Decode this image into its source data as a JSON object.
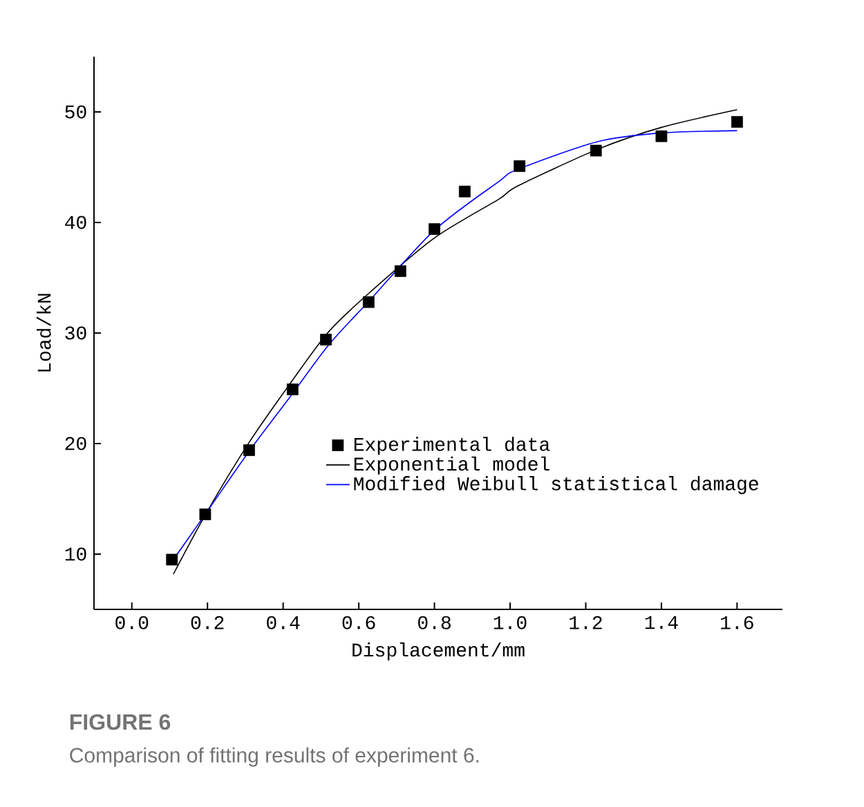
{
  "chart_data": {
    "type": "line",
    "title": "FIGURE 6",
    "subtitle": "Comparison of fitting results of experiment 6.",
    "xlabel": "Displacement/mm",
    "ylabel": "Load/kN",
    "xlim": [
      -0.1,
      1.72
    ],
    "ylim": [
      5,
      55
    ],
    "xticks": [
      {
        "value": 0,
        "label": "0.0"
      },
      0.2,
      0.4,
      0.6,
      0.8,
      {
        "value": 1,
        "label": "1.0"
      },
      1.2,
      1.4,
      1.6
    ],
    "yticks": [
      10,
      20,
      30,
      40,
      50
    ],
    "grid": false,
    "legend": "bottom right",
    "series": [
      {
        "name": "Experimental data",
        "type": "scatter",
        "marker": "square",
        "color": "#000000",
        "x": [
          0.106,
          0.194,
          0.31,
          0.425,
          0.513,
          0.626,
          0.71,
          0.8,
          0.88,
          1.025,
          1.227,
          1.4,
          1.6
        ],
        "values": [
          9.5,
          13.6,
          19.4,
          24.9,
          29.4,
          32.8,
          35.6,
          39.4,
          42.8,
          45.1,
          46.5,
          47.8,
          49.1
        ]
      },
      {
        "name": "Exponential model",
        "color": "#000000",
        "x": [
          0.11,
          0.2,
          0.31,
          0.42,
          0.52,
          0.63,
          0.8,
          0.97,
          1.02,
          1.23,
          1.4,
          1.6
        ],
        "values": [
          8.2,
          13.9,
          20.1,
          25.5,
          30.1,
          33.7,
          38.6,
          42.1,
          43.3,
          46.6,
          48.6,
          50.2
        ]
      },
      {
        "name": "Modified Weibull statistical damage",
        "color": "#0000ff",
        "x": [
          0.116,
          0.2,
          0.31,
          0.42,
          0.52,
          0.63,
          0.8,
          0.97,
          1.02,
          1.23,
          1.4,
          1.6
        ],
        "values": [
          9.8,
          13.9,
          19.3,
          24.3,
          28.9,
          33.0,
          39.3,
          43.7,
          44.8,
          47.3,
          48.1,
          48.3
        ]
      }
    ]
  }
}
